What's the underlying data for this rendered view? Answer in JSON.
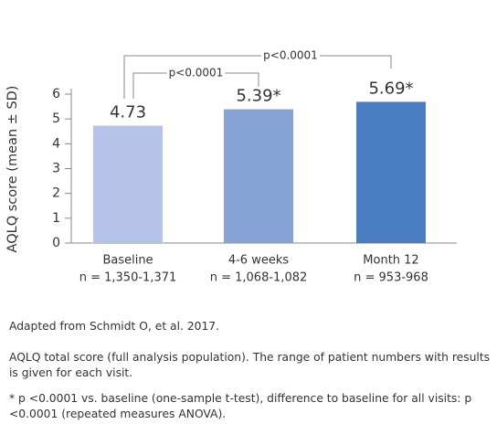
{
  "chart_data": {
    "type": "bar",
    "y_label": "AQLQ score (mean ± SD)",
    "categories": [
      "Baseline",
      "4-6 weeks",
      "Month 12"
    ],
    "n_labels": [
      "n = 1,350-1,371",
      "n = 1,068-1,082",
      "n = 953-968"
    ],
    "values": [
      4.73,
      5.39,
      5.69
    ],
    "value_labels": [
      "4.73",
      "5.39*",
      "5.69*"
    ],
    "colors": [
      "#b4c3e7",
      "#87a3d6",
      "#4a7ec3"
    ],
    "ylim": [
      0,
      6
    ],
    "yticks": [
      0,
      1,
      2,
      3,
      4,
      5,
      6
    ],
    "annotations": [
      "p<0.0001",
      "p<0.0001"
    ]
  },
  "notes": [
    "Adapted from Schmidt O, et al. 2017.",
    "AQLQ total score (full analysis population). The range of patient numbers with results is given for each visit.",
    "* p <0.0001 vs. baseline (one-sample t-test), difference to baseline for all visits: p <0.0001 (repeated measures ANOVA)."
  ]
}
